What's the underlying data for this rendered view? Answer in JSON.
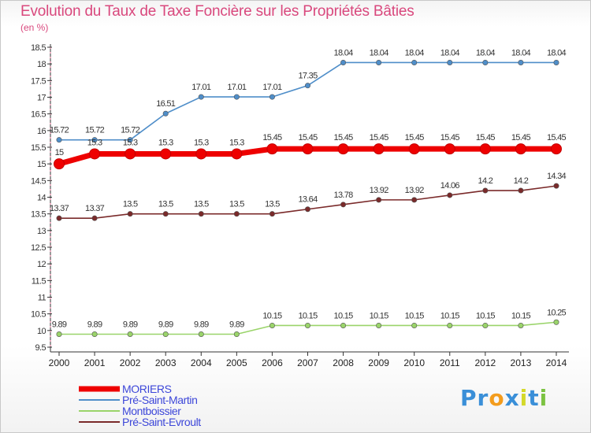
{
  "title": "Evolution du Taux de Taxe Foncière sur les Propriétés Bâties",
  "unit_label": "(en %)",
  "logo": {
    "letters": [
      "P",
      "r",
      "o",
      "x",
      "i",
      "t",
      "i"
    ],
    "colors": [
      "#3a8fd8",
      "#3a8fd8",
      "#f39c1d",
      "#3a8fd8",
      "#d4d92a",
      "#3a8fd8",
      "#7cc242"
    ]
  },
  "chart_data": {
    "type": "line",
    "title": "Evolution du Taux de Taxe Foncière sur les Propriétés Bâties",
    "ylabel": "(en %)",
    "ylim": [
      9.5,
      18.5
    ],
    "yticks": [
      "9.5",
      "10",
      "10.5",
      "11",
      "11.5",
      "12",
      "12.5",
      "13",
      "13.5",
      "14",
      "14.5",
      "15",
      "15.5",
      "16",
      "16.5",
      "17",
      "17.5",
      "18",
      "18.5"
    ],
    "x": [
      "2000",
      "2001",
      "2002",
      "2003",
      "2004",
      "2005",
      "2006",
      "2007",
      "2008",
      "2009",
      "2010",
      "2011",
      "2012",
      "2013",
      "2014"
    ],
    "grid": false,
    "legend_position": "bottom-left",
    "series": [
      {
        "name": "MORIERS",
        "color": "#ee0000",
        "values": [
          15,
          15.3,
          15.3,
          15.3,
          15.3,
          15.3,
          15.45,
          15.45,
          15.45,
          15.45,
          15.45,
          15.45,
          15.45,
          15.45,
          15.45
        ],
        "labels": [
          "15",
          "15.3",
          "15.3",
          "15.3",
          "15.3",
          "15.3",
          "15.45",
          "15.45",
          "15.45",
          "15.45",
          "15.45",
          "15.45",
          "15.45",
          "15.45",
          "15.45"
        ]
      },
      {
        "name": "Pré-Saint-Martin",
        "color": "#4f8ec9",
        "values": [
          15.72,
          15.72,
          15.72,
          16.51,
          17.01,
          17.01,
          17.01,
          17.35,
          18.04,
          18.04,
          18.04,
          18.04,
          18.04,
          18.04,
          18.04
        ],
        "labels": [
          "15.72",
          "15.72",
          "15.72",
          "16.51",
          "17.01",
          "17.01",
          "17.01",
          "17.35",
          "18.04",
          "18.04",
          "18.04",
          "18.04",
          "18.04",
          "18.04",
          "18.04"
        ]
      },
      {
        "name": "Montboissier",
        "color": "#9ad46a",
        "values": [
          9.89,
          9.89,
          9.89,
          9.89,
          9.89,
          9.89,
          10.15,
          10.15,
          10.15,
          10.15,
          10.15,
          10.15,
          10.15,
          10.15,
          10.25
        ],
        "labels": [
          "9.89",
          "9.89",
          "9.89",
          "9.89",
          "9.89",
          "9.89",
          "10.15",
          "10.15",
          "10.15",
          "10.15",
          "10.15",
          "10.15",
          "10.15",
          "10.15",
          "10.25"
        ]
      },
      {
        "name": "Pré-Saint-Evroult",
        "color": "#7a2a2a",
        "values": [
          13.37,
          13.37,
          13.5,
          13.5,
          13.5,
          13.5,
          13.5,
          13.64,
          13.78,
          13.92,
          13.92,
          14.06,
          14.2,
          14.2,
          14.34
        ],
        "labels": [
          "13.37",
          "13.37",
          "13.5",
          "13.5",
          "13.5",
          "13.5",
          "13.5",
          "13.64",
          "13.78",
          "13.92",
          "13.92",
          "14.06",
          "14.2",
          "14.2",
          "14.34"
        ]
      }
    ]
  }
}
